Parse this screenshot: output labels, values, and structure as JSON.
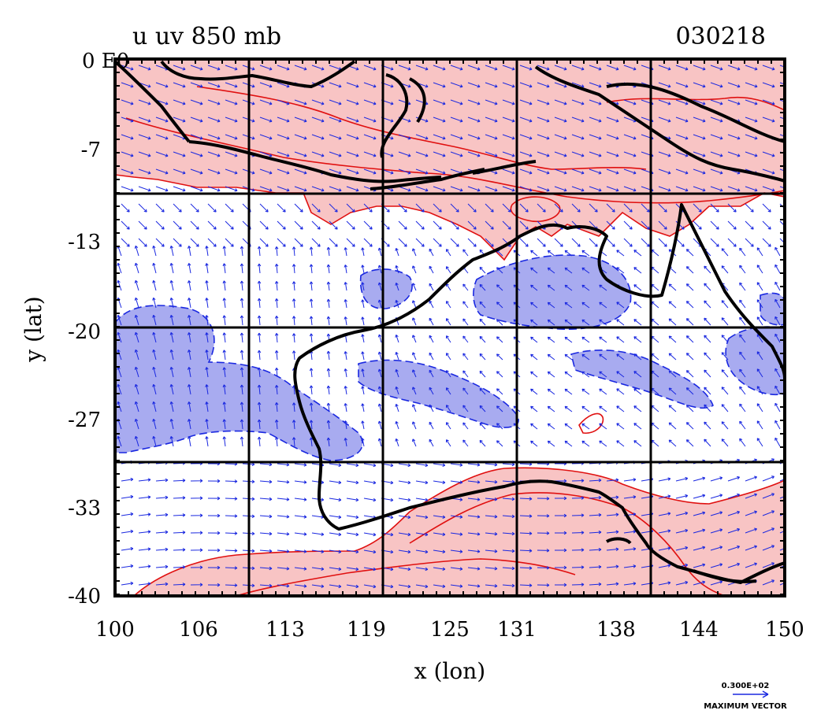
{
  "plot": {
    "title_left": "u  uv  850  mb",
    "title_right": "030218",
    "corner_label": "0 E0"
  },
  "axes": {
    "xlabel": "x (lon)",
    "ylabel": "y (lat)",
    "x_ticks": [
      "100",
      "106",
      "113",
      "119",
      "125",
      "131",
      "138",
      "144",
      "150"
    ],
    "y_ticks": [
      "-7",
      "-13",
      "-20",
      "-27",
      "-33",
      "-40"
    ],
    "x_range": [
      100,
      150
    ],
    "y_range": [
      -40,
      0
    ]
  },
  "legend": {
    "reference_value": "0.300E+02",
    "reference_caption": "MAXIMUM VECTOR"
  },
  "colors": {
    "positive_fill": "#f8c4c4",
    "positive_line": "#e01010",
    "negative_fill": "#a8abf0",
    "negative_line": "#1a28e0",
    "vectors": "#1a28e0",
    "coast": "#000000",
    "grid": "#000000"
  },
  "chart_data": {
    "type": "map",
    "projection": "lon-lat",
    "field": "u wind, uv vectors, 850 mb",
    "date": "030218",
    "x": {
      "label": "x (lon)",
      "range": [
        100,
        150
      ],
      "ticks": [
        100,
        106,
        113,
        119,
        125,
        131,
        138,
        144,
        150
      ]
    },
    "y": {
      "label": "y (lat)",
      "range": [
        -40,
        0
      ],
      "ticks": [
        -7,
        -13,
        -20,
        -27,
        -33,
        -40
      ]
    },
    "grid": true,
    "regions": [
      {
        "sign": "positive",
        "description": "westerly band across the north (Java Sea to Arafura Sea)"
      },
      {
        "sign": "positive",
        "description": "westerly band across the south (Southern Ocean / Great Australian Bight)"
      },
      {
        "sign": "negative",
        "description": "easterly patches over the Indian Ocean, interior Australia and Coral Sea"
      }
    ]
  }
}
